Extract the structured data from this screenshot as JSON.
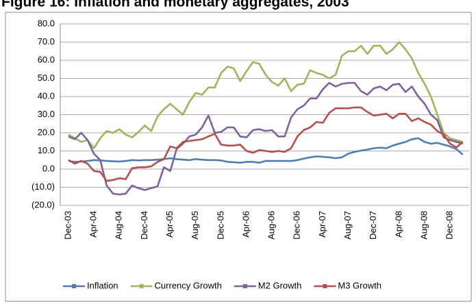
{
  "chart_data": {
    "type": "line",
    "title": "Figure 16: Inflation and monetary aggregates, 2003",
    "categories": [
      "Dec-03",
      null,
      null,
      null,
      "Apr-04",
      null,
      null,
      null,
      "Aug-04",
      null,
      null,
      null,
      "Dec-04",
      null,
      null,
      null,
      "Apr-05",
      null,
      null,
      null,
      "Aug-05",
      null,
      null,
      null,
      "Dec-05",
      null,
      null,
      null,
      "Apr-06",
      null,
      null,
      null,
      "Aug-06",
      null,
      null,
      null,
      "Dec-06",
      null,
      null,
      null,
      "Apr-07",
      null,
      null,
      null,
      "Aug-07",
      null,
      null,
      null,
      "Dec-07",
      null,
      null,
      null,
      "Apr-08",
      null,
      null,
      null,
      "Aug-08",
      null,
      null,
      null,
      "Dec-08",
      null,
      null
    ],
    "series": [
      {
        "name": "Inflation",
        "color": "#4a7ebb",
        "values": [
          4.5,
          4,
          4.2,
          4.5,
          5,
          4.8,
          4.5,
          4.3,
          4.2,
          4.5,
          5,
          4.8,
          5,
          5,
          5.2,
          5.5,
          6,
          5.5,
          5.2,
          5,
          5.5,
          5.2,
          5,
          5,
          4.8,
          4,
          3.8,
          3.5,
          4,
          4,
          3.5,
          4.5,
          4.5,
          4.5,
          4.5,
          4.5,
          5,
          5.8,
          6.5,
          7,
          6.8,
          6.5,
          6,
          6.5,
          8.5,
          9.5,
          10.2,
          10.8,
          11.5,
          11.8,
          11.5,
          13,
          14,
          15,
          16.5,
          17,
          15,
          14,
          14.5,
          13.5,
          12.5,
          11,
          8
        ]
      },
      {
        "name": "Currency Growth",
        "color": "#98b954",
        "values": [
          19,
          17,
          15,
          16,
          11.5,
          17,
          21,
          20,
          22,
          19,
          17.5,
          20.5,
          24,
          21,
          29,
          33,
          36,
          33,
          30,
          37,
          42,
          41,
          45,
          45,
          53,
          56.5,
          55.5,
          48.5,
          54,
          59,
          58,
          52,
          48,
          46,
          50,
          43,
          46.5,
          47,
          54.5,
          53,
          52,
          50,
          52,
          62.5,
          65,
          65,
          68,
          63.5,
          68,
          68,
          63.5,
          66,
          70,
          66,
          61,
          53,
          47,
          40,
          30,
          20,
          17,
          16,
          15
        ]
      },
      {
        "name": "M2 Growth",
        "color": "#7d60a0",
        "values": [
          18,
          16.5,
          20,
          16,
          8.5,
          5,
          -9,
          -13.5,
          -14,
          -13.5,
          -9,
          -10.5,
          -11.5,
          -10.5,
          -9.5,
          1,
          -1,
          11,
          14,
          18,
          19,
          23,
          29.5,
          20,
          20.5,
          23,
          23,
          18,
          17.5,
          21.5,
          22,
          21,
          21.5,
          18,
          18,
          28.5,
          33,
          35,
          39,
          39,
          44,
          47.5,
          45.5,
          47,
          47.5,
          47.5,
          43,
          41,
          44.5,
          45.5,
          43.5,
          46.5,
          47,
          42.5,
          45.5,
          40,
          36,
          30,
          27,
          17.5,
          16,
          15,
          14
        ]
      },
      {
        "name": "M3 Growth",
        "color": "#be4b48",
        "values": [
          5,
          3,
          4.5,
          3,
          -1,
          -1.5,
          -6.5,
          -6,
          -5,
          -5.5,
          0.5,
          1,
          1,
          1.5,
          4,
          5.5,
          12.5,
          11.5,
          15,
          15.5,
          16,
          16.5,
          18,
          19.5,
          13.5,
          13,
          13,
          13.5,
          10,
          9,
          10.5,
          10,
          9.5,
          10,
          9.5,
          11.5,
          18,
          21.5,
          23,
          26,
          25.5,
          31,
          33.5,
          33.5,
          33.5,
          34,
          34,
          31.5,
          29.5,
          30,
          30.5,
          28,
          30.5,
          30.5,
          26.5,
          28,
          26,
          24.5,
          21,
          19,
          14,
          12,
          15
        ]
      }
    ],
    "ylim": [
      -20,
      80
    ],
    "yticks": [
      {
        "value": -20,
        "label": "(20.0)"
      },
      {
        "value": -10,
        "label": "(10.0)"
      },
      {
        "value": 0,
        "label": "0.0"
      },
      {
        "value": 10,
        "label": "10.0"
      },
      {
        "value": 20,
        "label": "20.0"
      },
      {
        "value": 30,
        "label": "30.0"
      },
      {
        "value": 40,
        "label": "40.0"
      },
      {
        "value": 50,
        "label": "50.0"
      },
      {
        "value": 60,
        "label": "60.0"
      },
      {
        "value": 70,
        "label": "70.0"
      },
      {
        "value": 80,
        "label": "80.0"
      }
    ],
    "grid": true,
    "legend": "bottom"
  }
}
